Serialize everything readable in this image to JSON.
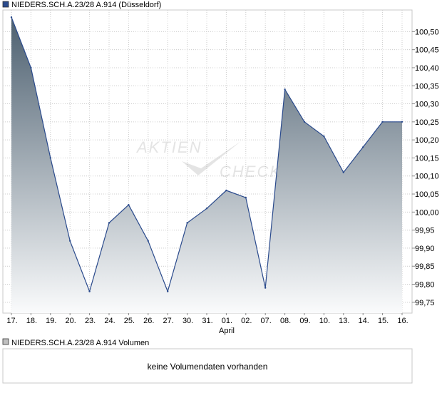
{
  "price_chart": {
    "legend_label": "NIEDERS.SCH.A.23/28 A.914 (Düsseldorf)",
    "series_color": "#2a4a8c",
    "fill_top_color": "#4d6070",
    "fill_bottom_color": "#fafbfc",
    "grid_color": "#cccccc",
    "watermark": {
      "line1": "AKTIEN",
      "line2": "CHECK"
    },
    "month_label": "April"
  },
  "chart_data": {
    "type": "area",
    "categories": [
      "17.",
      "18.",
      "19.",
      "20.",
      "23.",
      "24.",
      "25.",
      "26.",
      "27.",
      "30.",
      "31.",
      "01.",
      "02.",
      "07.",
      "08.",
      "09.",
      "10.",
      "13.",
      "14.",
      "15.",
      "16."
    ],
    "series": [
      {
        "name": "NIEDERS.SCH.A.23/28 A.914 (Düsseldorf)",
        "values": [
          100.54,
          100.4,
          100.15,
          99.92,
          99.78,
          99.97,
          100.02,
          99.92,
          99.78,
          99.97,
          100.01,
          100.06,
          100.04,
          99.79,
          100.34,
          100.25,
          100.21,
          100.11,
          100.18,
          100.25,
          100.25
        ]
      }
    ],
    "yticks": [
      "100,50",
      "100,45",
      "100,40",
      "100,35",
      "100,30",
      "100,25",
      "100,20",
      "100,15",
      "100,10",
      "100,05",
      "100,00",
      "99,95",
      "99,90",
      "99,85",
      "99,80",
      "99,75"
    ],
    "ylim": [
      99.72,
      100.56
    ],
    "grid": true
  },
  "volume_chart": {
    "legend_label": "NIEDERS.SCH.A.23/28 A.914 Volumen",
    "no_data_text": "keine Volumendaten vorhanden",
    "legend_color": "#c0c0c0"
  }
}
